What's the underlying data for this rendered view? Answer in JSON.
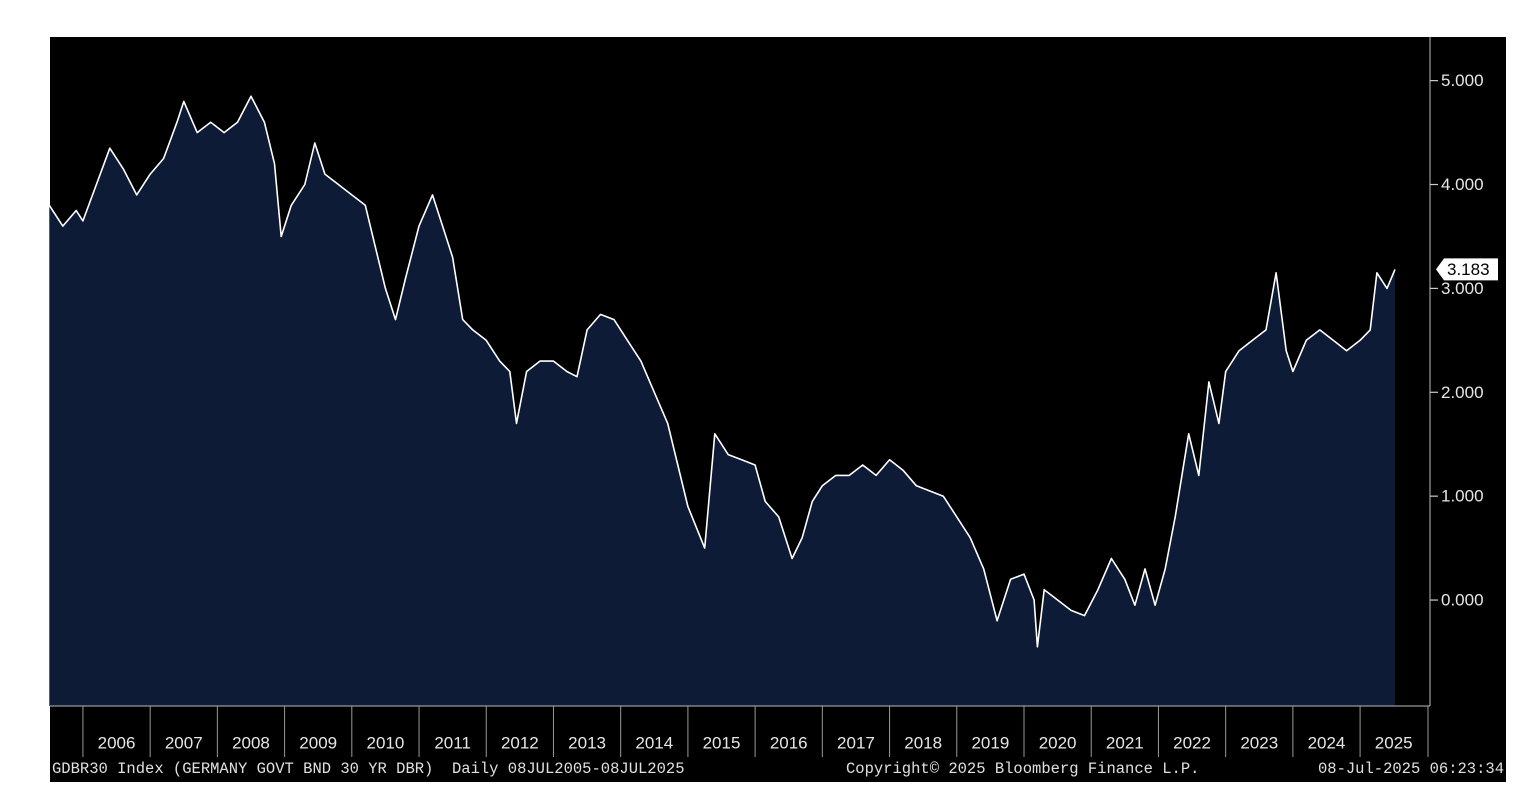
{
  "chart_data": {
    "type": "area",
    "x": [
      2005.5,
      2005.7,
      2005.9,
      2006.0,
      2006.2,
      2006.4,
      2006.6,
      2006.8,
      2007.0,
      2007.2,
      2007.4,
      2007.5,
      2007.7,
      2007.9,
      2008.1,
      2008.3,
      2008.5,
      2008.7,
      2008.85,
      2008.95,
      2009.1,
      2009.3,
      2009.45,
      2009.6,
      2009.8,
      2010.0,
      2010.2,
      2010.35,
      2010.5,
      2010.65,
      2010.8,
      2011.0,
      2011.2,
      2011.35,
      2011.5,
      2011.65,
      2011.8,
      2012.0,
      2012.2,
      2012.35,
      2012.45,
      2012.6,
      2012.8,
      2013.0,
      2013.2,
      2013.35,
      2013.5,
      2013.7,
      2013.9,
      2014.1,
      2014.3,
      2014.5,
      2014.7,
      2014.85,
      2015.0,
      2015.25,
      2015.4,
      2015.6,
      2015.8,
      2016.0,
      2016.15,
      2016.35,
      2016.55,
      2016.7,
      2016.85,
      2017.0,
      2017.2,
      2017.4,
      2017.6,
      2017.8,
      2018.0,
      2018.2,
      2018.4,
      2018.6,
      2018.8,
      2019.0,
      2019.2,
      2019.4,
      2019.6,
      2019.8,
      2020.0,
      2020.15,
      2020.2,
      2020.3,
      2020.5,
      2020.7,
      2020.9,
      2021.1,
      2021.3,
      2021.5,
      2021.65,
      2021.8,
      2021.95,
      2022.1,
      2022.25,
      2022.45,
      2022.6,
      2022.75,
      2022.9,
      2023.0,
      2023.2,
      2023.4,
      2023.6,
      2023.75,
      2023.9,
      2024.0,
      2024.2,
      2024.4,
      2024.6,
      2024.8,
      2025.0,
      2025.15,
      2025.25,
      2025.4,
      2025.52
    ],
    "values": [
      3.8,
      3.6,
      3.75,
      3.65,
      4.0,
      4.35,
      4.15,
      3.9,
      4.1,
      4.25,
      4.6,
      4.8,
      4.5,
      4.6,
      4.5,
      4.6,
      4.85,
      4.6,
      4.2,
      3.5,
      3.8,
      4.0,
      4.4,
      4.1,
      4.0,
      3.9,
      3.8,
      3.4,
      3.0,
      2.7,
      3.1,
      3.6,
      3.9,
      3.6,
      3.3,
      2.7,
      2.6,
      2.5,
      2.3,
      2.2,
      1.7,
      2.2,
      2.3,
      2.3,
      2.2,
      2.15,
      2.6,
      2.75,
      2.7,
      2.5,
      2.3,
      2.0,
      1.7,
      1.3,
      0.9,
      0.5,
      1.6,
      1.4,
      1.35,
      1.3,
      0.95,
      0.8,
      0.4,
      0.6,
      0.95,
      1.1,
      1.2,
      1.2,
      1.3,
      1.2,
      1.35,
      1.25,
      1.1,
      1.05,
      1.0,
      0.8,
      0.6,
      0.3,
      -0.2,
      0.2,
      0.25,
      0.0,
      -0.45,
      0.1,
      0.0,
      -0.1,
      -0.15,
      0.1,
      0.4,
      0.2,
      -0.05,
      0.3,
      -0.05,
      0.3,
      0.8,
      1.6,
      1.2,
      2.1,
      1.7,
      2.2,
      2.4,
      2.5,
      2.6,
      3.15,
      2.4,
      2.2,
      2.5,
      2.6,
      2.5,
      2.4,
      2.5,
      2.6,
      3.15,
      3.0,
      3.183
    ],
    "line_color": "#ffffff",
    "fill_color": "#0e1b36",
    "xlim": [
      2005.51,
      2026.04
    ],
    "ylim": [
      -1.02,
      5.42
    ],
    "xticks": [
      2006,
      2007,
      2008,
      2009,
      2010,
      2011,
      2012,
      2013,
      2014,
      2015,
      2016,
      2017,
      2018,
      2019,
      2020,
      2021,
      2022,
      2023,
      2024,
      2025
    ],
    "yticks": [
      {
        "value": 0,
        "label": "0.000"
      },
      {
        "value": 1,
        "label": "1.000"
      },
      {
        "value": 2,
        "label": "2.000"
      },
      {
        "value": 3,
        "label": "3.000"
      },
      {
        "value": 4,
        "label": "4.000"
      },
      {
        "value": 5,
        "label": "5.000"
      }
    ],
    "last_value": 3.183,
    "footer_left": "GDBR30 Index (GERMANY GOVT BND 30 YR DBR)  Daily 08JUL2005-08JUL2025",
    "copyright": "Copyright© 2025 Bloomberg Finance L.P.",
    "timestamp": "08-Jul-2025 06:23:34"
  }
}
